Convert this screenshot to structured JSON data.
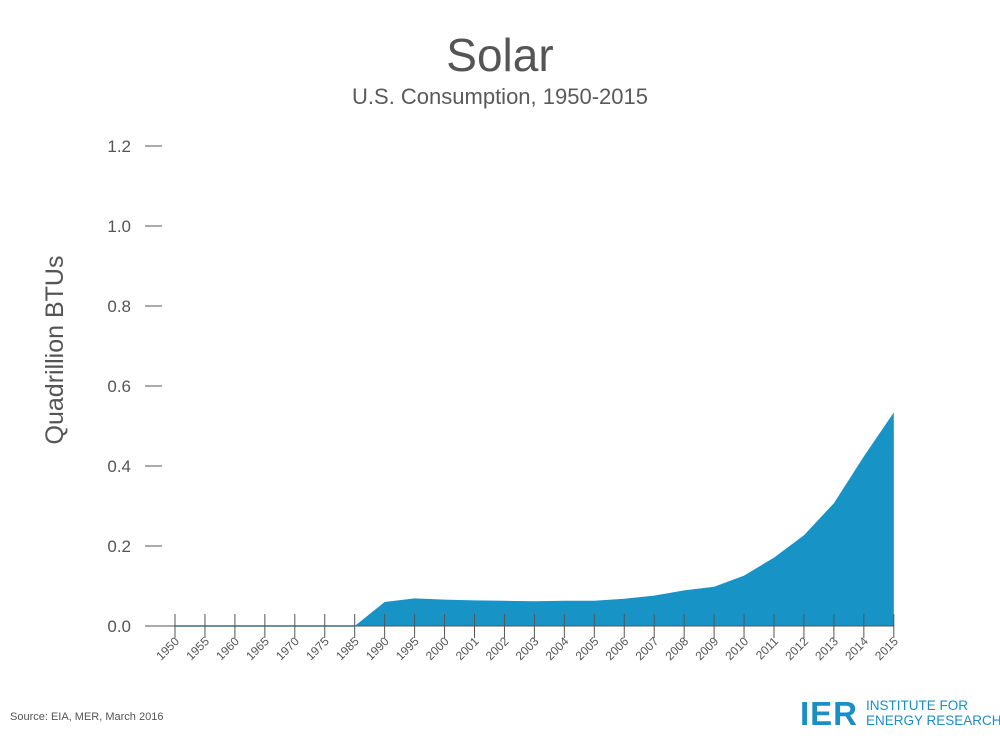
{
  "chart_data": {
    "type": "area",
    "title": "Solar",
    "subtitle": "U.S. Consumption, 1950-2015",
    "ylabel": "Quadrillion BTUs",
    "xlabel": "",
    "ylim": [
      0,
      1.2
    ],
    "yticks": [
      "0.0",
      "0.2",
      "0.4",
      "0.6",
      "0.8",
      "1.0",
      "1.2"
    ],
    "categories": [
      "1950",
      "1955",
      "1960",
      "1965",
      "1970",
      "1975",
      "1985",
      "1990",
      "1995",
      "2000",
      "2001",
      "2002",
      "2003",
      "2004",
      "2005",
      "2006",
      "2007",
      "2008",
      "2009",
      "2010",
      "2011",
      "2012",
      "2013",
      "2014",
      "2015"
    ],
    "values": [
      0,
      0,
      0,
      0,
      0,
      0,
      0,
      0.06,
      0.069,
      0.066,
      0.064,
      0.063,
      0.062,
      0.063,
      0.063,
      0.068,
      0.076,
      0.089,
      0.098,
      0.126,
      0.171,
      0.227,
      0.307,
      0.424,
      0.534
    ],
    "grid": false,
    "legend": "none",
    "colors": {
      "fill": "#1793c6",
      "axis": "#555555"
    }
  },
  "source": "Source: EIA, MER, March 2016",
  "logo": {
    "mark": "IER",
    "line1": "INSTITUTE FOR",
    "line2": "ENERGY RESEARCH"
  }
}
